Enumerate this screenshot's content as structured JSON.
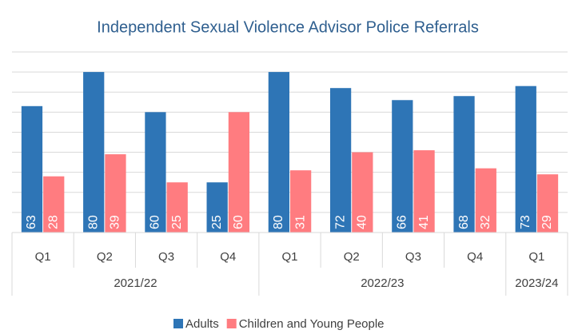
{
  "chart_data": {
    "type": "bar",
    "title": "Independent Sexual Violence Advisor Police Referrals",
    "groups": [
      {
        "name": "2021/22",
        "categories": [
          "Q1",
          "Q2",
          "Q3",
          "Q4"
        ]
      },
      {
        "name": "2022/23",
        "categories": [
          "Q1",
          "Q2",
          "Q3",
          "Q4"
        ]
      },
      {
        "name": "2023/24",
        "categories": [
          "Q1"
        ]
      }
    ],
    "series": [
      {
        "name": "Adults",
        "color": "#2e75b6",
        "values": [
          63,
          80,
          60,
          25,
          80,
          72,
          66,
          68,
          73
        ]
      },
      {
        "name": "Children and Young People",
        "color": "#ff7c80",
        "values": [
          28,
          39,
          25,
          60,
          31,
          40,
          41,
          32,
          29
        ]
      }
    ],
    "ylim": [
      0,
      90
    ],
    "yticks": [
      0,
      10,
      20,
      30,
      40,
      50,
      60,
      70,
      80,
      90
    ],
    "grid": true,
    "legend": "bottom"
  }
}
